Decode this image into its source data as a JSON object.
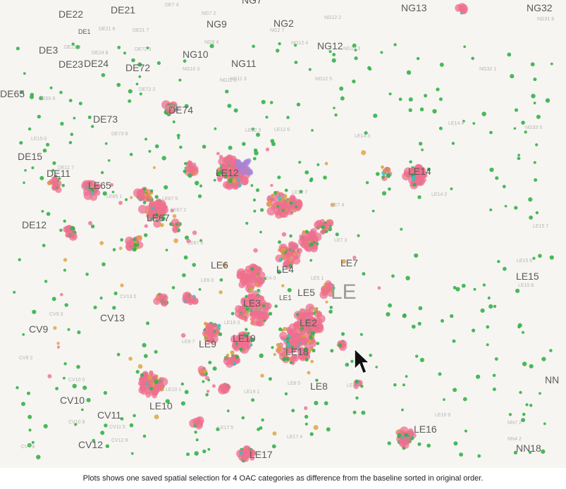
{
  "map": {
    "region_label": "LE",
    "district_labels": [
      "NG13",
      "NG32",
      "DE22",
      "DE21",
      "NG9",
      "NG2",
      "DE1",
      "NG12",
      "NG7",
      "DE3",
      "NG10",
      "DE23",
      "DE24",
      "DE72",
      "NG11",
      "DE65",
      "DE74",
      "DE73",
      "LE12",
      "LE14",
      "DE15",
      "DE11",
      "LE65",
      "LE67",
      "DE12",
      "LE7",
      "LE6",
      "LE4",
      "LE15",
      "LE5",
      "LE1",
      "LE3",
      "LE2",
      "CV9",
      "CV13",
      "LE19",
      "LE9",
      "LE18",
      "CV10",
      "LE8",
      "NN",
      "LE10",
      "CV11",
      "LE16",
      "CV12",
      "NN18",
      "LE17"
    ],
    "small_labels": [
      "DE7 4",
      "NG7 2",
      "NG12 2",
      "NG31 8",
      "NG9 4",
      "NG2 7",
      "DE21 7",
      "DE21 6",
      "NG12 4",
      "NG12 3",
      "DE23 3",
      "DE24 8",
      "DE72 3",
      "NG10 3",
      "NG11 3",
      "NG32 1",
      "DE65 6",
      "DE72 2",
      "DE74 2",
      "NG11 0",
      "NG12 5",
      "DE73 8",
      "LE12 3",
      "LE12 6",
      "LE14 3",
      "LE14 4",
      "NG33 5",
      "LE15 0",
      "DE11 7",
      "LE12 7",
      "LE12 9",
      "LE14 2",
      "LE65 1",
      "LE67 5",
      "LE67 2",
      "LE15 7",
      "LE67 9",
      "LE7 3",
      "LE7 4",
      "LE15 6",
      "LE15 8",
      "LE6 0",
      "LE4 0",
      "LE5 1",
      "LE3 8",
      "LE3 0",
      "LE2 8",
      "LE19 3",
      "LE9 7",
      "CV13 0",
      "CV9 3",
      "CV9 2",
      "CV10 0",
      "CV10 8",
      "LE10 1",
      "LE19 1",
      "LE8 8",
      "LE8 5",
      "LE16 9",
      "CV11 5",
      "LE17 5",
      "NN7 2",
      "NN4 2",
      "LE17 4",
      "CV12 9",
      "CV7 8"
    ]
  },
  "caption": "Plots shows one saved spatial selection for 4 OAC categories as difference from the baseline sorted in original order.",
  "colors": {
    "green": "#33b24a",
    "pink": "#ef6f8e",
    "orange": "#d9a23a",
    "teal": "#3fbcc0",
    "purple": "#a484d8"
  },
  "cursor_icon": "arrow-cursor-icon"
}
